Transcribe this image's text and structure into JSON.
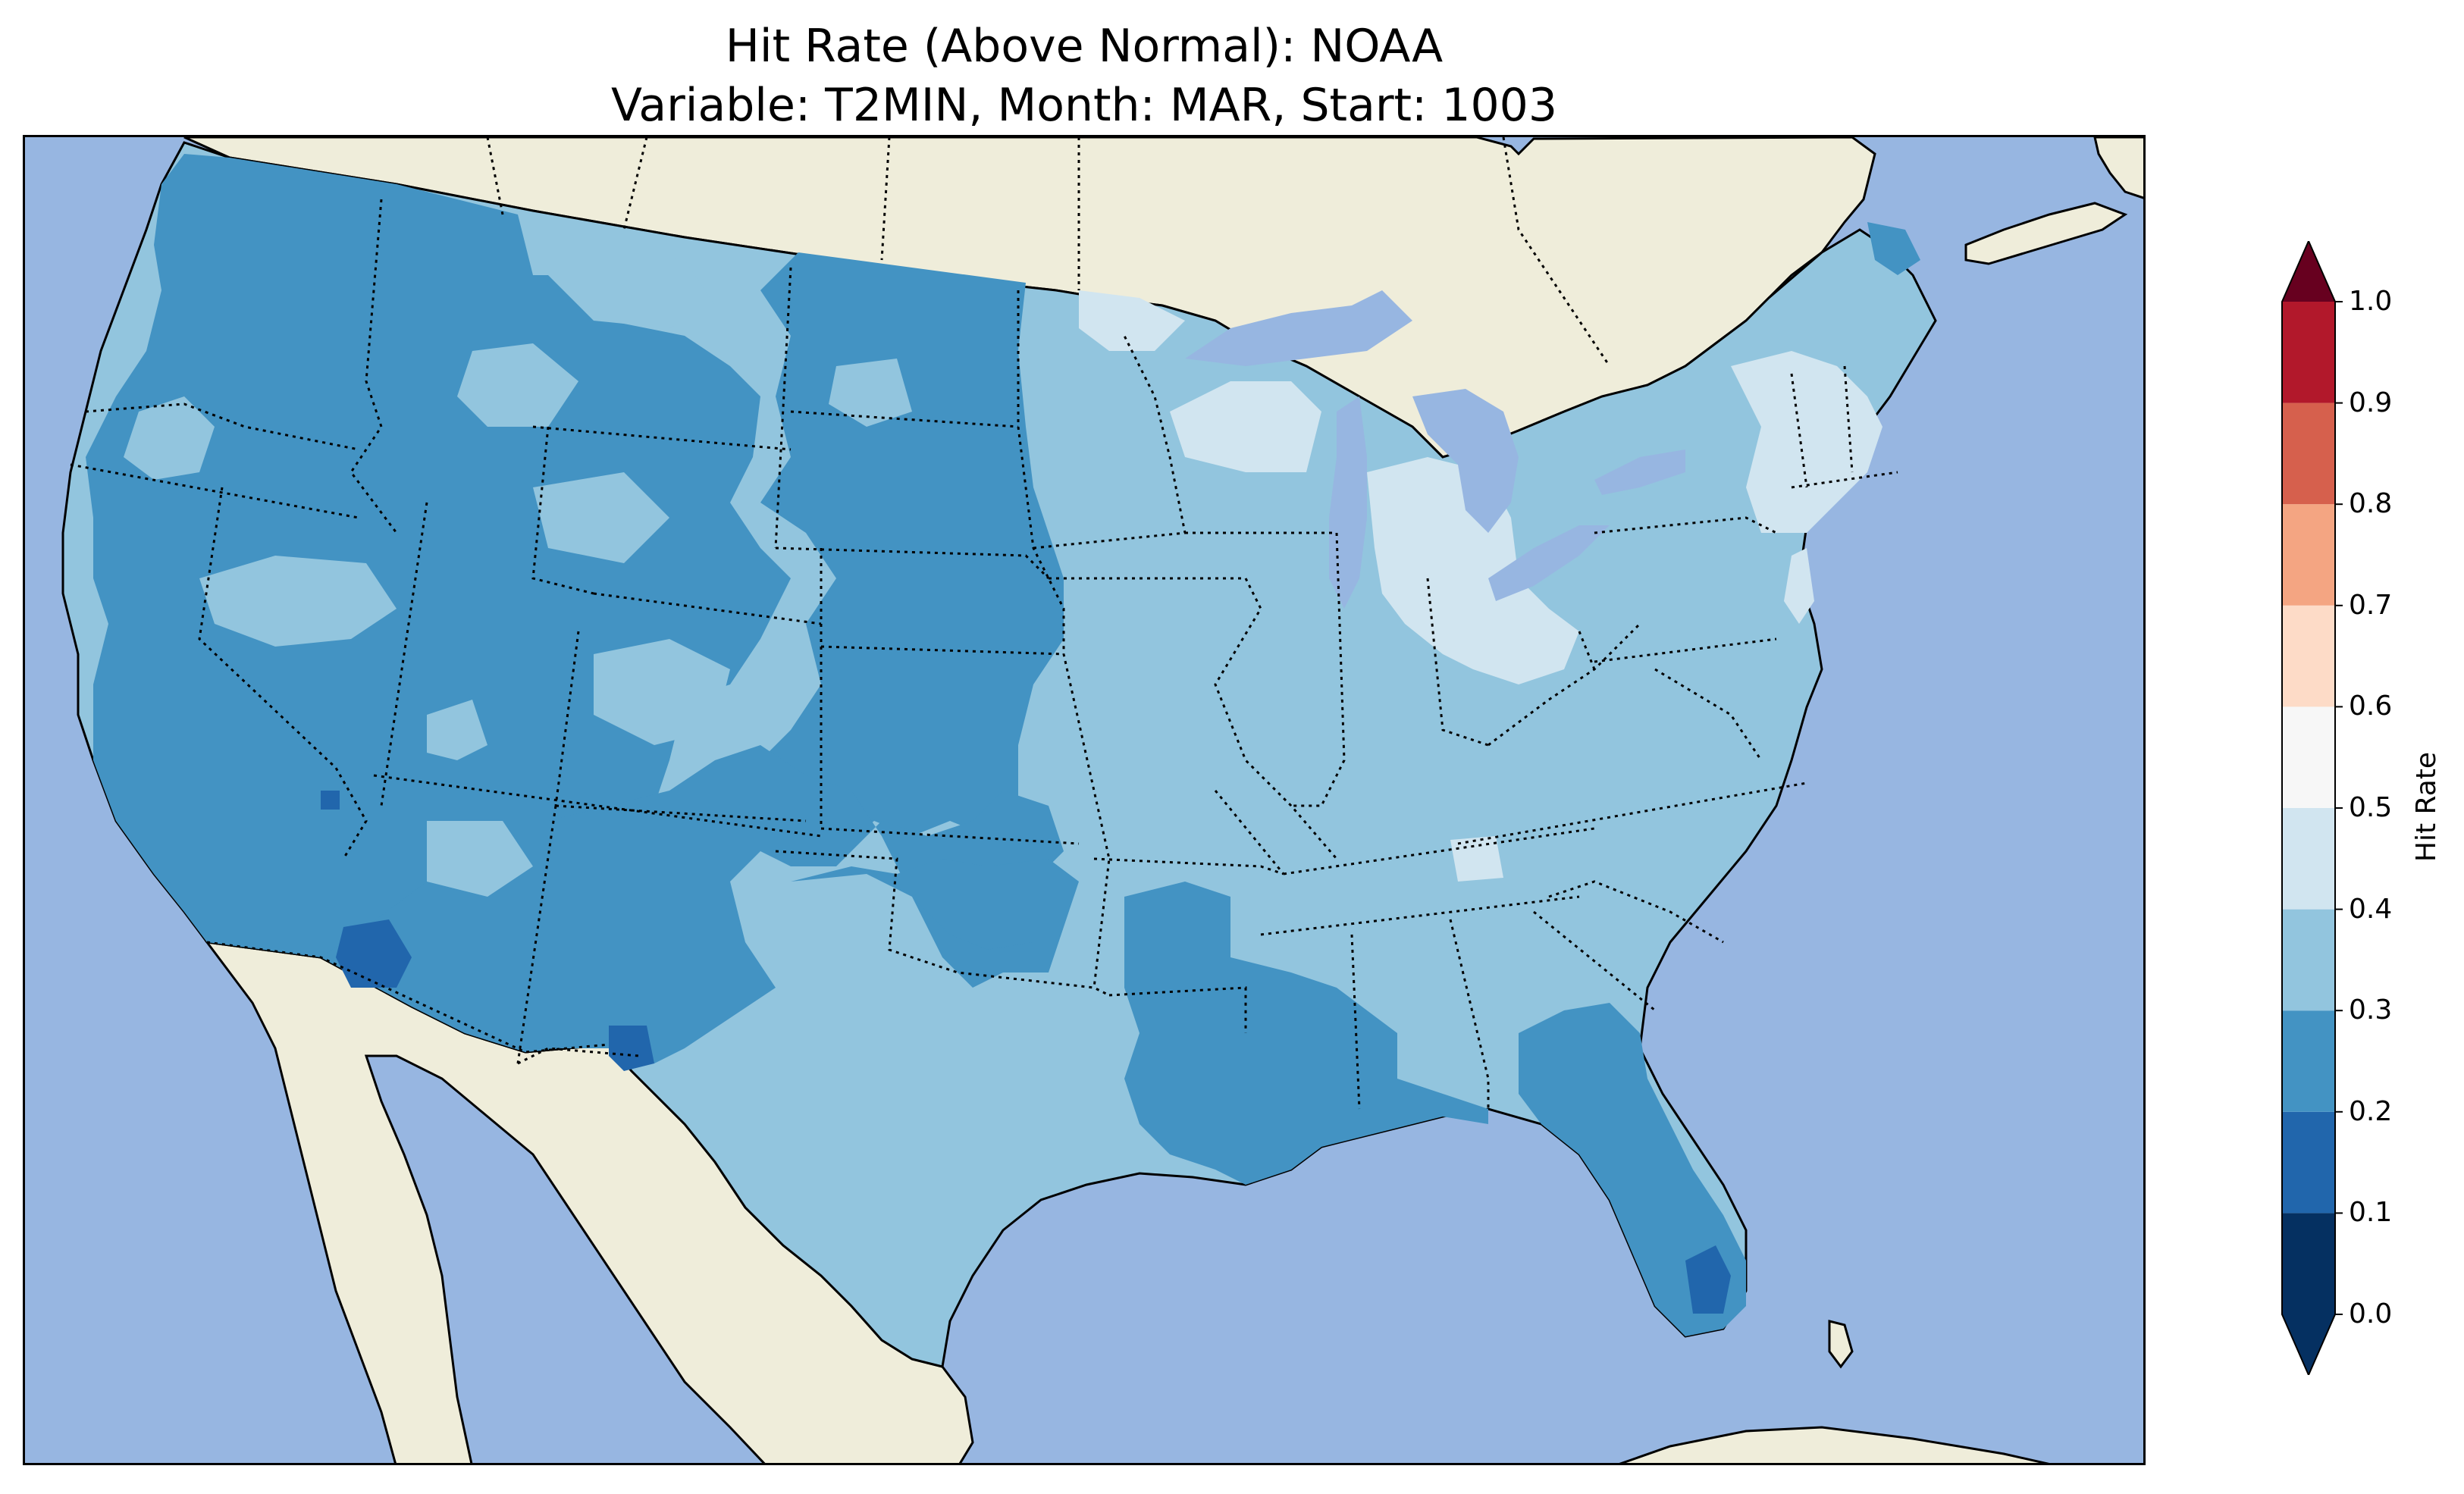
{
  "title": {
    "line1": "Hit Rate (Above Normal): NOAA",
    "line2": "Variable: T2MIN, Month: MAR, Start: 1003"
  },
  "colors": {
    "ocean": "#97b6e1",
    "land": "#efedda",
    "lakes": "#97b6e1"
  },
  "colorbar": {
    "label": "Hit Rate",
    "extend": "both",
    "ticks": [
      "0.0",
      "0.1",
      "0.2",
      "0.3",
      "0.4",
      "0.5",
      "0.6",
      "0.7",
      "0.8",
      "0.9",
      "1.0"
    ],
    "bins": [
      {
        "from": 0.0,
        "to": 0.1,
        "color": "#053061"
      },
      {
        "from": 0.1,
        "to": 0.2,
        "color": "#2166ac"
      },
      {
        "from": 0.2,
        "to": 0.3,
        "color": "#4393c3"
      },
      {
        "from": 0.3,
        "to": 0.4,
        "color": "#92c5de"
      },
      {
        "from": 0.4,
        "to": 0.5,
        "color": "#d1e5f0"
      },
      {
        "from": 0.5,
        "to": 0.6,
        "color": "#f7f7f7"
      },
      {
        "from": 0.6,
        "to": 0.7,
        "color": "#fddbc7"
      },
      {
        "from": 0.7,
        "to": 0.8,
        "color": "#f4a582"
      },
      {
        "from": 0.8,
        "to": 0.9,
        "color": "#d6604d"
      },
      {
        "from": 0.9,
        "to": 1.0,
        "color": "#b2182b"
      }
    ],
    "under_color": "#053061",
    "over_color": "#67001f"
  },
  "map": {
    "regions": [
      {
        "name": "pacific-northwest",
        "hit_rate_bin": "0.2-0.3"
      },
      {
        "name": "great-basin",
        "hit_rate_bin": "0.2-0.3"
      },
      {
        "name": "southwest",
        "hit_rate_bin": "0.2-0.3"
      },
      {
        "name": "northern-rockies",
        "hit_rate_bin": "0.2-0.3"
      },
      {
        "name": "northern-plains",
        "hit_rate_bin": "0.2-0.3"
      },
      {
        "name": "southern-arizona",
        "hit_rate_bin": "0.1-0.2"
      },
      {
        "name": "west-texas-spot",
        "hit_rate_bin": "0.1-0.2"
      },
      {
        "name": "midwest",
        "hit_rate_bin": "0.3-0.4"
      },
      {
        "name": "southern-plains",
        "hit_rate_bin": "0.3-0.4"
      },
      {
        "name": "gulf-coast",
        "hit_rate_bin": "0.2-0.3"
      },
      {
        "name": "florida",
        "hit_rate_bin": "0.2-0.3"
      },
      {
        "name": "south-florida",
        "hit_rate_bin": "0.1-0.2"
      },
      {
        "name": "great-lakes-michigan-ohio",
        "hit_rate_bin": "0.4-0.5"
      },
      {
        "name": "northeast",
        "hit_rate_bin": "0.4-0.5"
      },
      {
        "name": "maine-north",
        "hit_rate_bin": "0.2-0.3"
      }
    ]
  }
}
